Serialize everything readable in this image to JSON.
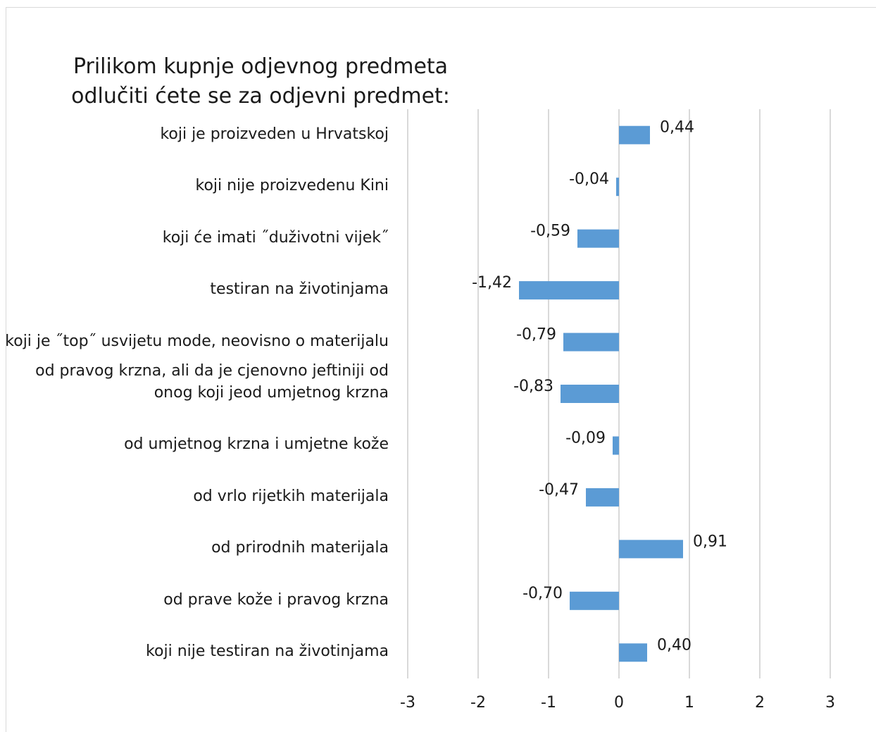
{
  "chart_data": {
    "type": "bar",
    "orientation": "horizontal",
    "title": "Prilikom kupnje odjevnog predmeta odlučiti ćete se za odjevni predmet:",
    "categories": [
      "koji je proizveden u Hrvatskoj",
      "koji nije proizvedenu Kini",
      "koji će imati ˝duživotni vijek˝",
      "testiran na životinjama",
      "koji je ˝top˝ usvijetu mode, neovisno o materijalu",
      "od pravog krzna, ali da je cjenovno jeftiniji od onog koji jeod umjetnog krzna",
      "od umjetnog krzna i umjetne kože",
      "od vrlo rijetkih materijala",
      "od prirodnih materijala",
      "od prave kože i pravog krzna",
      "koji nije testiran na životinjama"
    ],
    "values": [
      0.44,
      -0.04,
      -0.59,
      -1.42,
      -0.79,
      -0.83,
      -0.09,
      -0.47,
      0.91,
      -0.7,
      0.4
    ],
    "value_labels": [
      "0,44",
      "-0,04",
      "-0,59",
      "-1,42",
      "-0,79",
      "-0,83",
      "-0,09",
      "-0,47",
      "0,91",
      "-0,70",
      "0,40"
    ],
    "xlim": [
      -3,
      3
    ],
    "xticks": [
      "-3",
      "-2",
      "-1",
      "0",
      "1",
      "2",
      "3"
    ],
    "xtick_values": [
      -3,
      -2,
      -1,
      0,
      1,
      2,
      3
    ],
    "grid": true,
    "legend": "none",
    "bar_color": "#5b9bd5",
    "grid_color": "#d9d9d9"
  }
}
